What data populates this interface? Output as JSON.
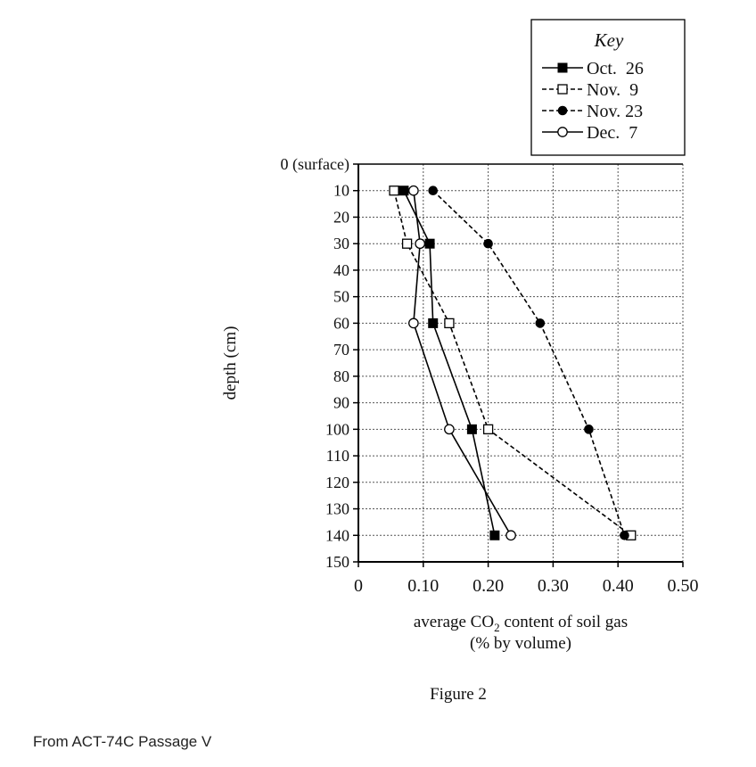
{
  "chart_data": {
    "type": "line",
    "orientation": "depth-down",
    "x": {
      "label_line1_prefix": "average CO",
      "label_line1_sub": "2",
      "label_line1_suffix": " content of soil gas",
      "label_line2": "(% by volume)",
      "range": [
        0,
        0.5
      ],
      "ticks": [
        0,
        0.1,
        0.2,
        0.3,
        0.4,
        0.5
      ],
      "tick_labels": [
        "0",
        "0.10",
        "0.20",
        "0.30",
        "0.40",
        "0.50"
      ]
    },
    "y": {
      "label": "depth (cm)",
      "range": [
        0,
        150
      ],
      "ticks": [
        0,
        10,
        20,
        30,
        40,
        50,
        60,
        70,
        80,
        90,
        100,
        110,
        120,
        130,
        140,
        150
      ],
      "tick_labels": [
        "0 (surface)",
        "10",
        "20",
        "30",
        "40",
        "50",
        "60",
        "70",
        "80",
        "90",
        "100",
        "110",
        "120",
        "130",
        "140",
        "150"
      ]
    },
    "grid": true,
    "legend": {
      "title": "Key",
      "placement": "top-right"
    },
    "series": [
      {
        "name": "Oct.  26",
        "marker": "filled-square",
        "line": "solid",
        "points": [
          {
            "depth": 10,
            "value": 0.07
          },
          {
            "depth": 30,
            "value": 0.11
          },
          {
            "depth": 60,
            "value": 0.115
          },
          {
            "depth": 100,
            "value": 0.175
          },
          {
            "depth": 140,
            "value": 0.21
          }
        ]
      },
      {
        "name": "Nov.  9",
        "marker": "open-square",
        "line": "dashed",
        "points": [
          {
            "depth": 10,
            "value": 0.055
          },
          {
            "depth": 30,
            "value": 0.075
          },
          {
            "depth": 60,
            "value": 0.14
          },
          {
            "depth": 100,
            "value": 0.2
          },
          {
            "depth": 140,
            "value": 0.42
          }
        ]
      },
      {
        "name": "Nov. 23",
        "marker": "filled-circle",
        "line": "dashed",
        "points": [
          {
            "depth": 10,
            "value": 0.115
          },
          {
            "depth": 30,
            "value": 0.2
          },
          {
            "depth": 60,
            "value": 0.28
          },
          {
            "depth": 100,
            "value": 0.355
          },
          {
            "depth": 140,
            "value": 0.41
          }
        ]
      },
      {
        "name": "Dec.  7",
        "marker": "open-circle",
        "line": "solid",
        "points": [
          {
            "depth": 10,
            "value": 0.085
          },
          {
            "depth": 30,
            "value": 0.095
          },
          {
            "depth": 60,
            "value": 0.085
          },
          {
            "depth": 100,
            "value": 0.14
          },
          {
            "depth": 140,
            "value": 0.235
          }
        ]
      }
    ],
    "caption": "Figure 2"
  },
  "source_note": "From ACT-74C Passage V"
}
